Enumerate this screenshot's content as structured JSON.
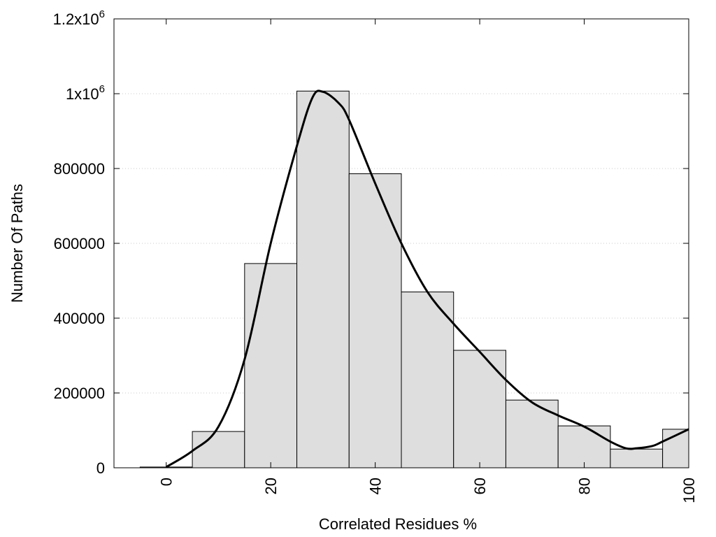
{
  "chart_data": {
    "type": "bar",
    "xlabel": "Correlated Residues %",
    "ylabel": "Number Of Paths",
    "xlim": [
      -10,
      100
    ],
    "ylim": [
      0,
      1200000
    ],
    "grid": true,
    "x_ticks": [
      0,
      20,
      40,
      60,
      80,
      100
    ],
    "x_tick_labels": [
      "0",
      "20",
      "40",
      "60",
      "80",
      "100"
    ],
    "y_ticks": [
      0,
      200000,
      400000,
      600000,
      800000,
      1000000,
      1200000
    ],
    "y_tick_labels": [
      {
        "text": "0"
      },
      {
        "text": "200000"
      },
      {
        "text": "400000"
      },
      {
        "text": "600000"
      },
      {
        "text": "800000"
      },
      {
        "text": "1x10",
        "sup": "6"
      },
      {
        "text": "1.2x10",
        "sup": "6"
      }
    ],
    "bar_width": 10,
    "bars": [
      {
        "x": 0,
        "value": 2000
      },
      {
        "x": 10,
        "value": 97000
      },
      {
        "x": 20,
        "value": 546000
      },
      {
        "x": 30,
        "value": 1007000
      },
      {
        "x": 40,
        "value": 786000
      },
      {
        "x": 50,
        "value": 470000
      },
      {
        "x": 60,
        "value": 314000
      },
      {
        "x": 70,
        "value": 181000
      },
      {
        "x": 80,
        "value": 112000
      },
      {
        "x": 90,
        "value": 50000
      },
      {
        "x": 100,
        "value": 103000
      }
    ],
    "curve": {
      "x": [
        0,
        5,
        10,
        15,
        20,
        25,
        28,
        30,
        33,
        35,
        40,
        45,
        50,
        55,
        60,
        65,
        70,
        75,
        80,
        85,
        88,
        90,
        93,
        95,
        100
      ],
      "y": [
        2000,
        45000,
        110000,
        290000,
        600000,
        860000,
        990000,
        1005000,
        975000,
        930000,
        760000,
        600000,
        470000,
        385000,
        310000,
        235000,
        175000,
        140000,
        110000,
        70000,
        52000,
        52000,
        58000,
        70000,
        103000
      ]
    },
    "colors": {
      "bar_fill": "#dedede",
      "bar_stroke": "#000000",
      "curve": "#000000",
      "grid": "#c8c8c8"
    }
  }
}
